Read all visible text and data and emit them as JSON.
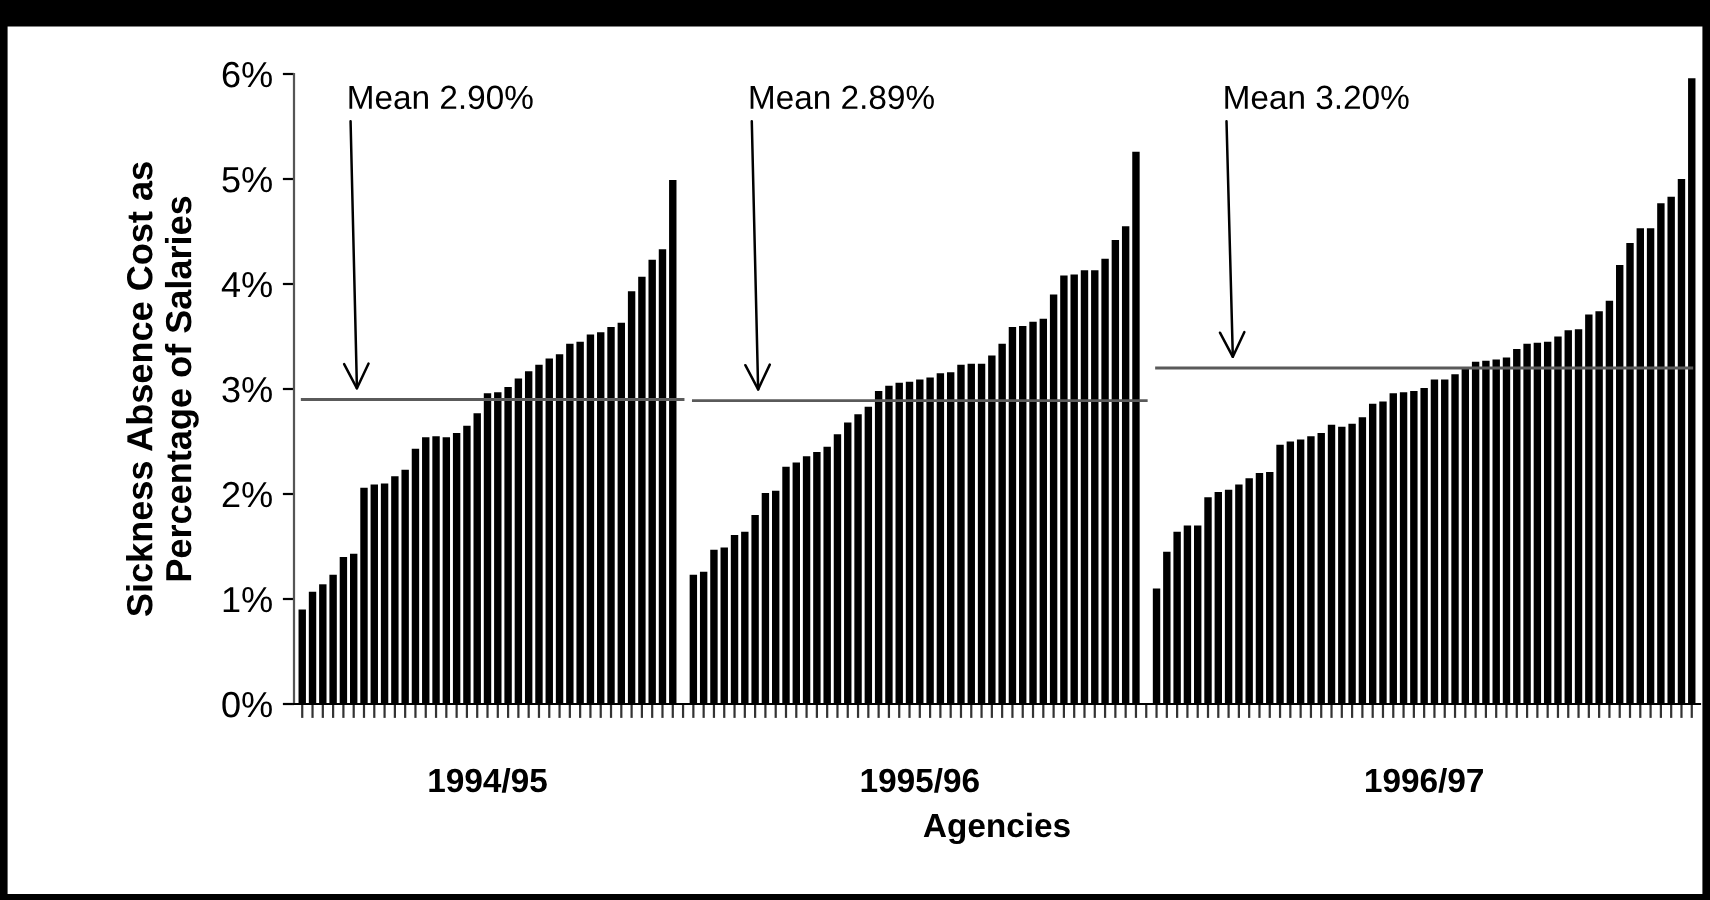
{
  "chart_data": {
    "type": "bar",
    "xlabel": "Agencies",
    "ylabel": "Sickness Absence Cost as\nPercentage of Salaries",
    "categories": [
      null,
      null,
      null,
      null,
      null,
      null,
      null,
      null,
      null,
      null,
      null,
      null,
      null,
      null,
      null,
      null,
      null,
      null,
      "1994/95",
      null,
      null,
      null,
      null,
      null,
      null,
      null,
      null,
      null,
      null,
      null,
      null,
      null,
      null,
      null,
      null,
      null,
      null,
      null,
      null,
      null,
      null,
      null,
      null,
      null,
      null,
      null,
      null,
      null,
      null,
      null,
      null,
      null,
      null,
      null,
      null,
      null,
      null,
      null,
      null,
      null,
      "1995/96",
      null,
      null,
      null,
      null,
      null,
      null,
      null,
      null,
      null,
      null,
      null,
      null,
      null,
      null,
      null,
      null,
      null,
      null,
      null,
      null,
      null,
      null,
      null,
      null,
      null,
      null,
      null,
      null,
      null,
      null,
      null,
      null,
      null,
      null,
      null,
      null,
      null,
      null,
      null,
      null,
      null,
      null,
      null,
      null,
      null,
      null,
      null,
      null,
      "1996/97",
      null,
      null,
      null,
      null,
      null,
      null,
      null,
      null,
      null,
      null,
      null,
      null,
      null,
      null,
      null,
      null,
      null,
      null,
      null,
      null,
      null,
      null,
      null,
      null,
      null,
      null
    ],
    "series": [
      {
        "type": "bar",
        "color": "#000000",
        "values": [
          0.9,
          1.07,
          1.14,
          1.23,
          1.4,
          1.43,
          2.06,
          2.09,
          2.1,
          2.17,
          2.23,
          2.43,
          2.54,
          2.55,
          2.54,
          2.58,
          2.65,
          2.77,
          2.96,
          2.97,
          3.02,
          3.1,
          3.17,
          3.23,
          3.29,
          3.33,
          3.43,
          3.45,
          3.52,
          3.54,
          3.59,
          3.63,
          3.93,
          4.07,
          4.23,
          4.33,
          4.99,
          null,
          1.23,
          1.26,
          1.47,
          1.49,
          1.61,
          1.64,
          1.8,
          2.01,
          2.03,
          2.26,
          2.3,
          2.36,
          2.4,
          2.45,
          2.57,
          2.68,
          2.76,
          2.83,
          2.98,
          3.03,
          3.06,
          3.07,
          3.09,
          3.11,
          3.15,
          3.16,
          3.23,
          3.24,
          3.24,
          3.32,
          3.43,
          3.59,
          3.6,
          3.64,
          3.67,
          3.9,
          4.08,
          4.09,
          4.13,
          4.13,
          4.24,
          4.42,
          4.55,
          5.26,
          null,
          1.1,
          1.45,
          1.64,
          1.7,
          1.7,
          1.97,
          2.02,
          2.04,
          2.09,
          2.15,
          2.2,
          2.21,
          2.47,
          2.5,
          2.52,
          2.55,
          2.58,
          2.66,
          2.64,
          2.67,
          2.73,
          2.86,
          2.88,
          2.96,
          2.97,
          2.98,
          3.01,
          3.09,
          3.09,
          3.14,
          3.21,
          3.26,
          3.27,
          3.28,
          3.3,
          3.38,
          3.43,
          3.44,
          3.45,
          3.5,
          3.56,
          3.57,
          3.71,
          3.74,
          3.84,
          4.18,
          4.39,
          4.53,
          4.53,
          4.77,
          4.83,
          5.0,
          5.96
        ]
      },
      {
        "type": "line",
        "name": "Mean 2.90%",
        "color": "#5a5a5a",
        "values": [
          2.9,
          2.9,
          2.9,
          2.9,
          2.9,
          2.9,
          2.9,
          2.9,
          2.9,
          2.9,
          2.9,
          2.9,
          2.9,
          2.9,
          2.9,
          2.9,
          2.9,
          2.9,
          2.9,
          2.9,
          2.9,
          2.9,
          2.9,
          2.9,
          2.9,
          2.9,
          2.9,
          2.9,
          2.9,
          2.9,
          2.9,
          2.9,
          2.9,
          2.9,
          2.9,
          2.9,
          2.9,
          2.9,
          null,
          null,
          null,
          null,
          null,
          null,
          null,
          null,
          null,
          null,
          null,
          null,
          null,
          null,
          null,
          null,
          null,
          null,
          null,
          null,
          null,
          null,
          null,
          null,
          null,
          null,
          null,
          null,
          null,
          null,
          null,
          null,
          null,
          null,
          null,
          null,
          null,
          null,
          null,
          null,
          null,
          null,
          null,
          null,
          null,
          null,
          null,
          null,
          null,
          null,
          null,
          null,
          null,
          null,
          null,
          null,
          null,
          null,
          null,
          null,
          null,
          null,
          null,
          null,
          null,
          null,
          null,
          null,
          null,
          null,
          null,
          null,
          null,
          null,
          null,
          null,
          null,
          null,
          null,
          null,
          null,
          null,
          null,
          null,
          null,
          null,
          null,
          null,
          null,
          null,
          null,
          null,
          null,
          null,
          null,
          null,
          null,
          null
        ]
      },
      {
        "type": "line",
        "name": "Mean 2.89%",
        "color": "#5a5a5a",
        "values": [
          null,
          null,
          null,
          null,
          null,
          null,
          null,
          null,
          null,
          null,
          null,
          null,
          null,
          null,
          null,
          null,
          null,
          null,
          null,
          null,
          null,
          null,
          null,
          null,
          null,
          null,
          null,
          null,
          null,
          null,
          null,
          null,
          null,
          null,
          null,
          null,
          null,
          null,
          2.89,
          2.89,
          2.89,
          2.89,
          2.89,
          2.89,
          2.89,
          2.89,
          2.89,
          2.89,
          2.89,
          2.89,
          2.89,
          2.89,
          2.89,
          2.89,
          2.89,
          2.89,
          2.89,
          2.89,
          2.89,
          2.89,
          2.89,
          2.89,
          2.89,
          2.89,
          2.89,
          2.89,
          2.89,
          2.89,
          2.89,
          2.89,
          2.89,
          2.89,
          2.89,
          2.89,
          2.89,
          2.89,
          2.89,
          2.89,
          2.89,
          2.89,
          2.89,
          2.89,
          2.89,
          null,
          null,
          null,
          null,
          null,
          null,
          null,
          null,
          null,
          null,
          null,
          null,
          null,
          null,
          null,
          null,
          null,
          null,
          null,
          null,
          null,
          null,
          null,
          null,
          null,
          null,
          null,
          null,
          null,
          null,
          null,
          null,
          null,
          null,
          null,
          null,
          null,
          null,
          null,
          null,
          null,
          null,
          null,
          null,
          null,
          null,
          null,
          null,
          null,
          null,
          null,
          null,
          null
        ]
      },
      {
        "type": "line",
        "name": "Mean 3.20%",
        "color": "#5a5a5a",
        "values": [
          null,
          null,
          null,
          null,
          null,
          null,
          null,
          null,
          null,
          null,
          null,
          null,
          null,
          null,
          null,
          null,
          null,
          null,
          null,
          null,
          null,
          null,
          null,
          null,
          null,
          null,
          null,
          null,
          null,
          null,
          null,
          null,
          null,
          null,
          null,
          null,
          null,
          null,
          null,
          null,
          null,
          null,
          null,
          null,
          null,
          null,
          null,
          null,
          null,
          null,
          null,
          null,
          null,
          null,
          null,
          null,
          null,
          null,
          null,
          null,
          null,
          null,
          null,
          null,
          null,
          null,
          null,
          null,
          null,
          null,
          null,
          null,
          null,
          null,
          null,
          null,
          null,
          null,
          null,
          null,
          null,
          null,
          null,
          3.2,
          3.2,
          3.2,
          3.2,
          3.2,
          3.2,
          3.2,
          3.2,
          3.2,
          3.2,
          3.2,
          3.2,
          3.2,
          3.2,
          3.2,
          3.2,
          3.2,
          3.2,
          3.2,
          3.2,
          3.2,
          3.2,
          3.2,
          3.2,
          3.2,
          3.2,
          3.2,
          3.2,
          3.2,
          3.2,
          3.2,
          3.2,
          3.2,
          3.2,
          3.2,
          3.2,
          3.2,
          3.2,
          3.2,
          3.2,
          3.2,
          3.2,
          3.2,
          3.2,
          3.2,
          3.2,
          3.2,
          3.2,
          3.2,
          3.2,
          3.2,
          3.2,
          3.2
        ]
      }
    ],
    "ylim": [
      0,
      6
    ],
    "yticks": [
      {
        "value": 0,
        "label": "0%"
      },
      {
        "value": 1,
        "label": "1%"
      },
      {
        "value": 2,
        "label": "2%"
      },
      {
        "value": 3,
        "label": "3%"
      },
      {
        "value": 4,
        "label": "4%"
      },
      {
        "value": 5,
        "label": "5%"
      },
      {
        "value": 6,
        "label": "6%"
      }
    ],
    "grid": false,
    "legend": false
  }
}
